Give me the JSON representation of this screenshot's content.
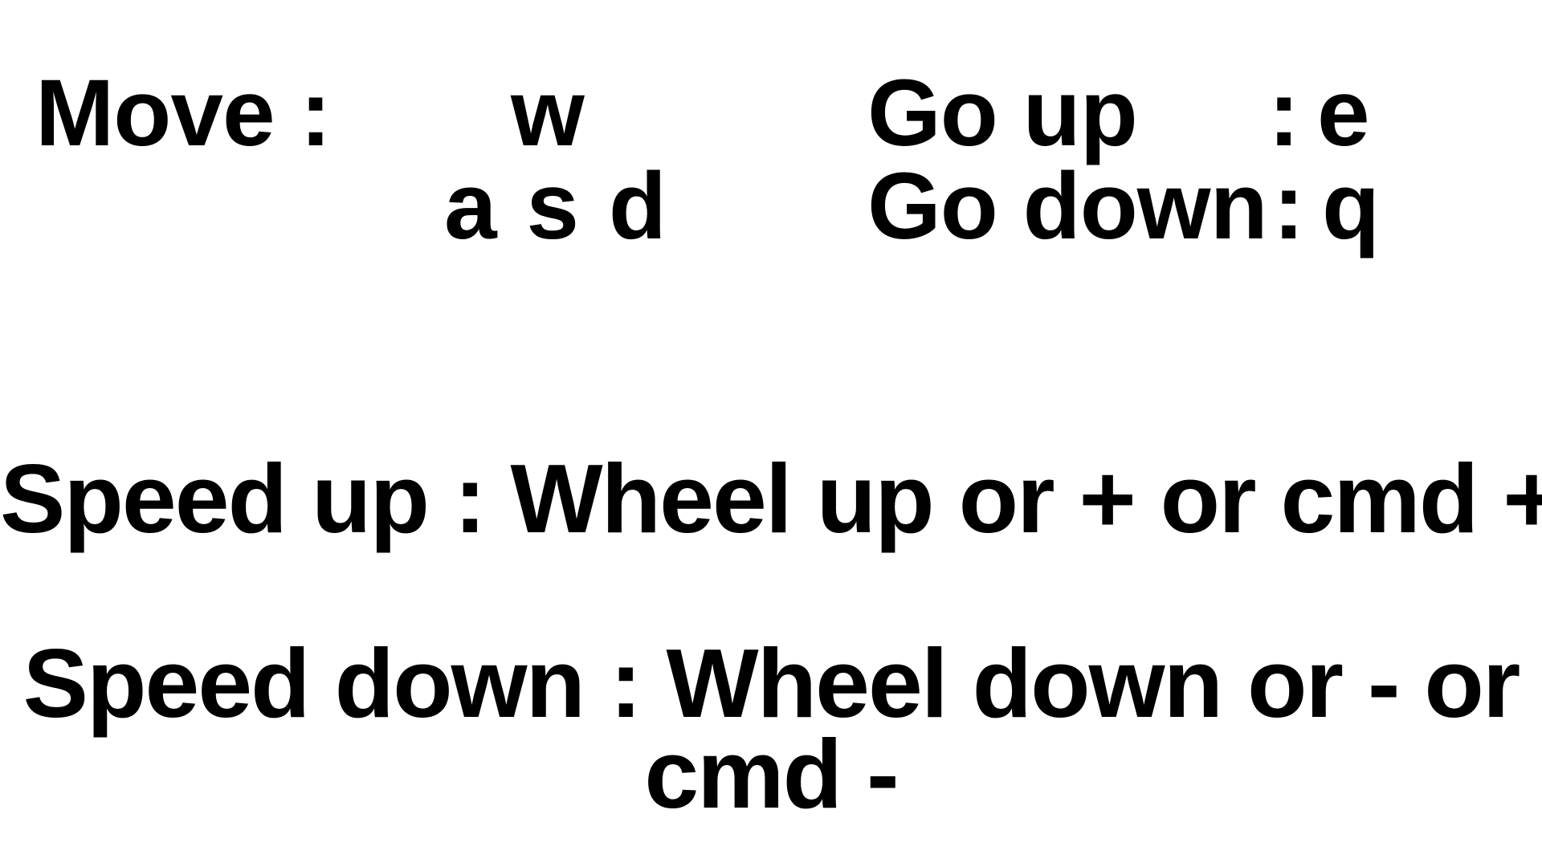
{
  "controls": {
    "move": {
      "label": "Move :",
      "key_forward": "w",
      "keys_row": "a s d"
    },
    "go_up": {
      "label": "Go up",
      "separator": ":",
      "key": "e"
    },
    "go_down": {
      "label": "Go down",
      "separator": ":",
      "key": "q"
    },
    "speed_up": {
      "text": "Speed up : Wheel up or + or cmd +"
    },
    "speed_down": {
      "line1": "Speed down : Wheel down or - or",
      "line2": "cmd -"
    }
  }
}
